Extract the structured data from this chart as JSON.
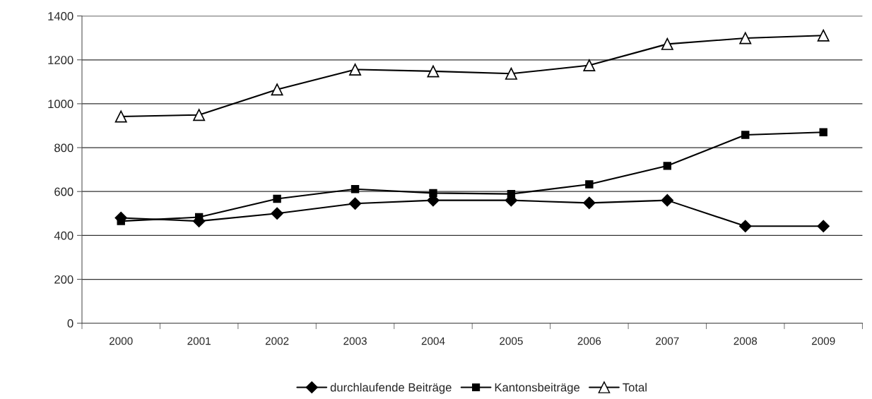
{
  "chart_data": {
    "type": "line",
    "categories": [
      "2000",
      "2001",
      "2002",
      "2003",
      "2004",
      "2005",
      "2006",
      "2007",
      "2008",
      "2009"
    ],
    "series": [
      {
        "name": "durchlaufende Beiträge",
        "color": "#000000",
        "marker": "diamond",
        "values": [
          480,
          465,
          500,
          545,
          560,
          560,
          548,
          560,
          442,
          442
        ]
      },
      {
        "name": "Kantonsbeiträge",
        "color": "#000000",
        "marker": "square",
        "values": [
          465,
          483,
          567,
          611,
          593,
          589,
          633,
          717,
          858,
          870
        ]
      },
      {
        "name": "Total",
        "color": "#000000",
        "marker": "triangle",
        "values": [
          942,
          949,
          1065,
          1156,
          1148,
          1137,
          1175,
          1272,
          1299,
          1311
        ]
      }
    ],
    "ylim": [
      0,
      1400
    ],
    "yticks": [
      0,
      200,
      400,
      600,
      800,
      1000,
      1200,
      1400
    ],
    "grid": "y",
    "legend": "bottom"
  }
}
